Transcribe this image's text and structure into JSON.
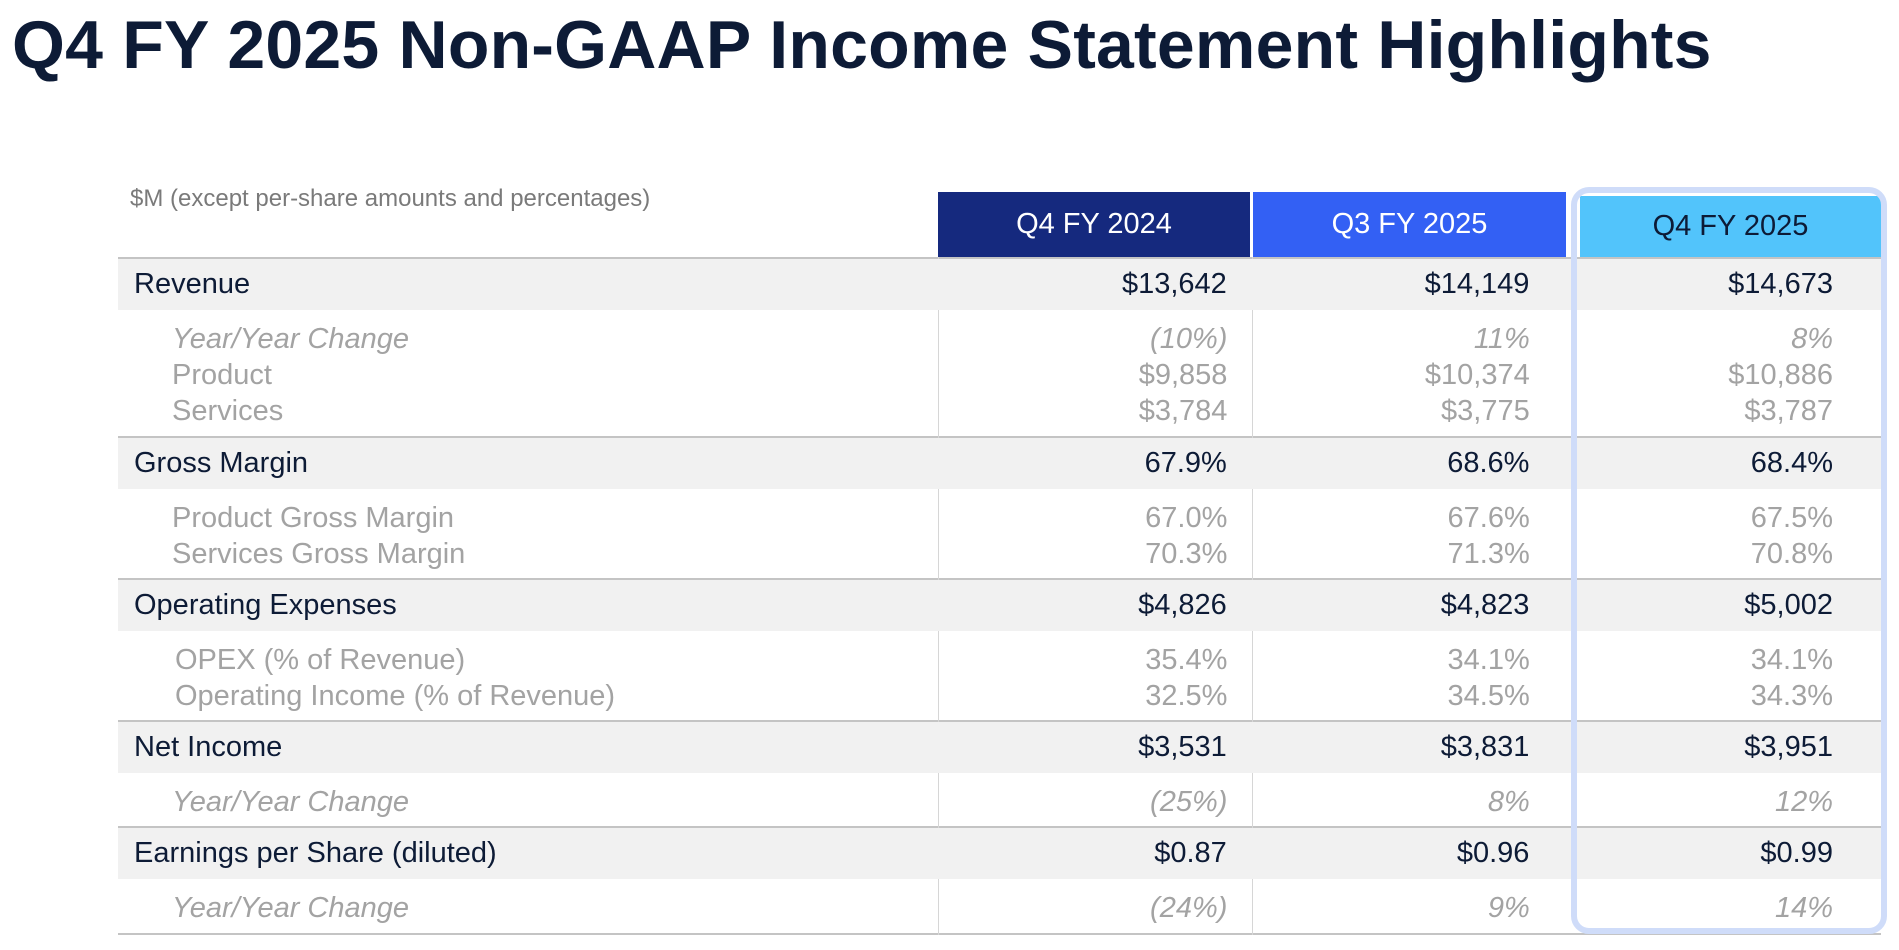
{
  "title": "Q4 FY 2025 Non-GAAP Income Statement Highlights",
  "units_note": "$M (except per-share amounts and percentages)",
  "columns": [
    "Q4 FY 2024",
    "Q3 FY 2025",
    "Q4 FY 2025"
  ],
  "colors": {
    "title": "#0d1b36",
    "col1_header": "#15297e",
    "col2_header": "#3360f4",
    "col3_header": "#52c4fb",
    "highlight_border": "#cfdcf9",
    "major_row_bg": "#f1f1f1",
    "minor_text": "#a3a3a3"
  },
  "rows": [
    {
      "label": "Revenue",
      "type": "major",
      "values": [
        "$13,642",
        "$14,149",
        "$14,673"
      ]
    },
    {
      "label": "Year/Year Change",
      "type": "minor-italic",
      "values": [
        "(10%)",
        "11%",
        "8%"
      ]
    },
    {
      "label": "Product",
      "type": "minor",
      "values": [
        "$9,858",
        "$10,374",
        "$10,886"
      ]
    },
    {
      "label": "Services",
      "type": "minor",
      "values": [
        "$3,784",
        "$3,775",
        "$3,787"
      ]
    },
    {
      "label": "Gross Margin",
      "type": "major",
      "values": [
        "67.9%",
        "68.6%",
        "68.4%"
      ]
    },
    {
      "label": "Product Gross Margin",
      "type": "minor",
      "values": [
        "67.0%",
        "67.6%",
        "67.5%"
      ]
    },
    {
      "label": "Services Gross Margin",
      "type": "minor",
      "values": [
        "70.3%",
        "71.3%",
        "70.8%"
      ]
    },
    {
      "label": "Operating Expenses",
      "type": "major",
      "values": [
        "$4,826",
        "$4,823",
        "$5,002"
      ]
    },
    {
      "label": "OPEX (% of Revenue)",
      "type": "minor",
      "values": [
        "35.4%",
        "34.1%",
        "34.1%"
      ]
    },
    {
      "label": "Operating Income (% of Revenue)",
      "type": "minor",
      "values": [
        "32.5%",
        "34.5%",
        "34.3%"
      ]
    },
    {
      "label": "Net Income",
      "type": "major",
      "values": [
        "$3,531",
        "$3,831",
        "$3,951"
      ]
    },
    {
      "label": "Year/Year Change",
      "type": "minor-italic",
      "values": [
        "(25%)",
        "8%",
        "12%"
      ]
    },
    {
      "label": "Earnings per Share (diluted)",
      "type": "major",
      "values": [
        "$0.87",
        "$0.96",
        "$0.99"
      ]
    },
    {
      "label": "Year/Year Change",
      "type": "minor-italic",
      "values": [
        "(24%)",
        "9%",
        "14%"
      ]
    }
  ]
}
